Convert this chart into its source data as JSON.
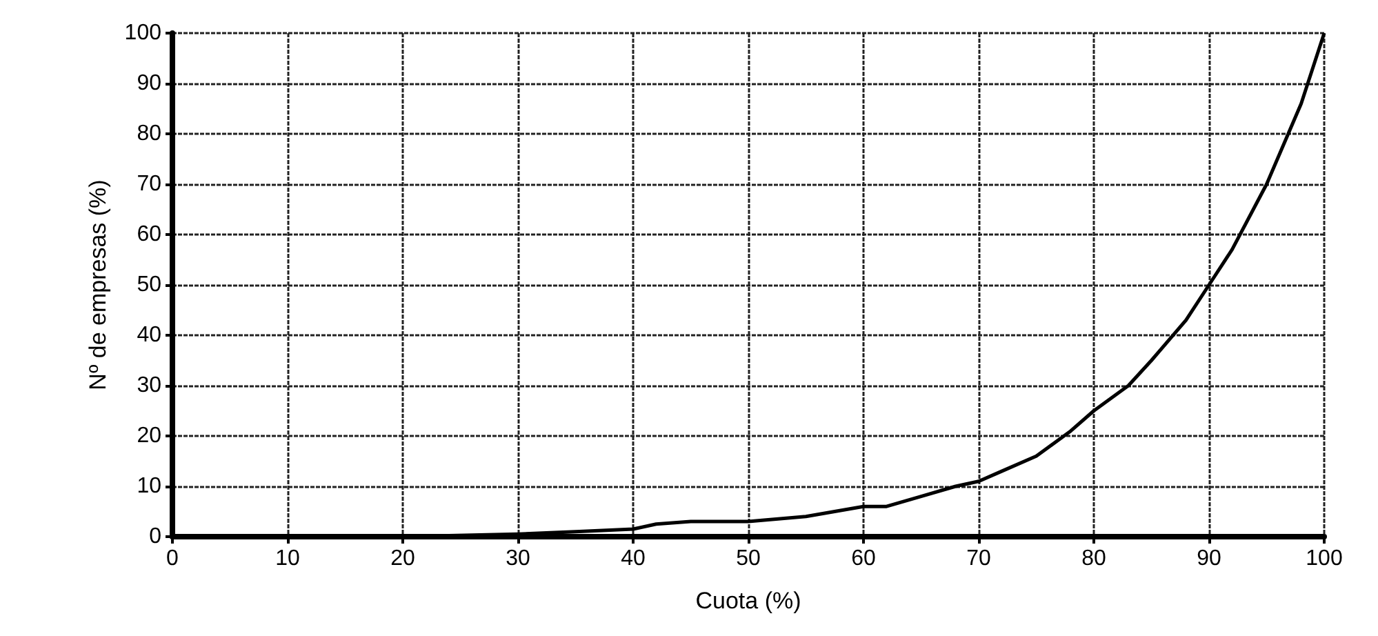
{
  "chart_data": {
    "type": "line",
    "xlabel": "Cuota (%)",
    "ylabel": "Nº de empresas (%)",
    "x": [
      0,
      10,
      20,
      30,
      35,
      40,
      42,
      45,
      50,
      55,
      60,
      62,
      65,
      68,
      70,
      72,
      75,
      78,
      80,
      83,
      85,
      88,
      90,
      92,
      95,
      98,
      100
    ],
    "series": [
      {
        "color": "#000000",
        "values": [
          0,
          0,
          0,
          0.5,
          1,
          1.5,
          2.5,
          3,
          3,
          4,
          6,
          6,
          8,
          10,
          11,
          13,
          16,
          21,
          25,
          30,
          35,
          43,
          50,
          57,
          70,
          86,
          100
        ]
      }
    ],
    "xlim": [
      0,
      100
    ],
    "xticks": [
      0,
      10,
      20,
      30,
      40,
      50,
      60,
      70,
      80,
      90,
      100
    ],
    "ylim": [
      0,
      100
    ],
    "yticks": [
      0,
      10,
      20,
      30,
      40,
      50,
      60,
      70,
      80,
      90,
      100
    ],
    "grid": true,
    "marker": "none",
    "line_style": "solid"
  }
}
